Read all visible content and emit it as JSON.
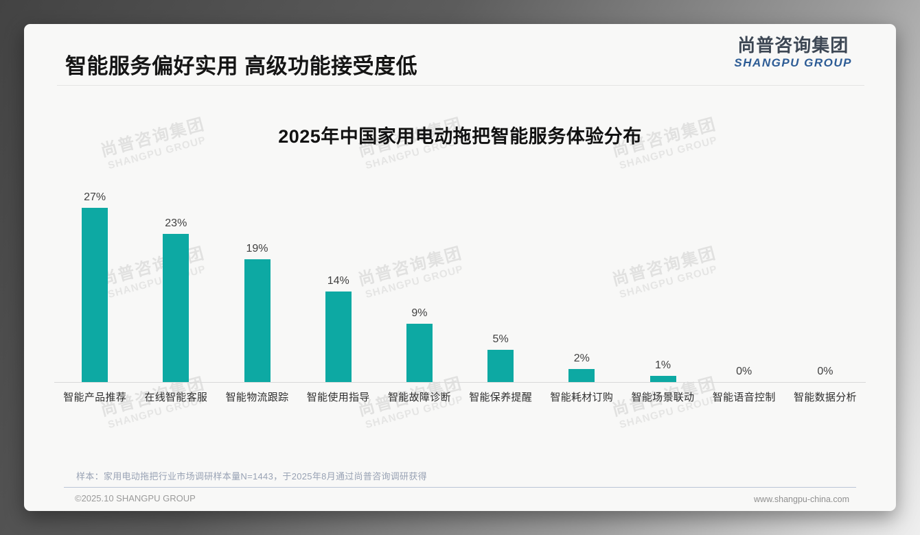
{
  "slide": {
    "title": "智能服务偏好实用 高级功能接受度低",
    "logo": {
      "name_cn": "尚普咨询集团",
      "name_en": "SHANGPU GROUP"
    },
    "watermark": {
      "cn": "尚普咨询集团",
      "en": "SHANGPU GROUP"
    },
    "footnote": "样本：家用电动拖把行业市场调研样本量N=1443，于2025年8月通过尚普咨询调研获得",
    "footer": {
      "left": "©2025.10 SHANGPU GROUP",
      "right": "www.shangpu-china.com"
    }
  },
  "chart_data": {
    "type": "bar",
    "title": "2025年中国家用电动拖把智能服务体验分布",
    "categories": [
      "智能产品推荐",
      "在线智能客服",
      "智能物流跟踪",
      "智能使用指导",
      "智能故障诊断",
      "智能保养提醒",
      "智能耗材订购",
      "智能场景联动",
      "智能语音控制",
      "智能数据分析"
    ],
    "values": [
      27,
      23,
      19,
      14,
      9,
      5,
      2,
      1,
      0,
      0
    ],
    "data_labels": [
      "27%",
      "23%",
      "19%",
      "14%",
      "9%",
      "5%",
      "2%",
      "1%",
      "0%",
      "0%"
    ],
    "unit": "%",
    "xlabel": "",
    "ylabel": "",
    "ylim": [
      0,
      28
    ],
    "grid": false,
    "legend": "none",
    "bar_color": "#0da9a3",
    "axis_color": "#d9d9d9"
  }
}
